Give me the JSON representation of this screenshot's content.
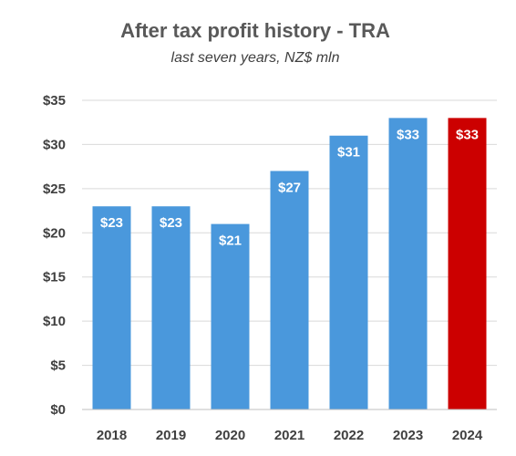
{
  "chart_data": {
    "type": "bar",
    "title": "After tax profit history - TRA",
    "subtitle": "last seven years, NZ$ mln",
    "xlabel": "",
    "ylabel": "",
    "categories": [
      "2018",
      "2019",
      "2020",
      "2021",
      "2022",
      "2023",
      "2024"
    ],
    "values": [
      23,
      23,
      21,
      27,
      31,
      33,
      33
    ],
    "data_labels": [
      "$23",
      "$23",
      "$21",
      "$27",
      "$31",
      "$33",
      "$33"
    ],
    "ylim": [
      0,
      35
    ],
    "yticks": [
      0,
      5,
      10,
      15,
      20,
      25,
      30,
      35
    ],
    "ytick_labels": [
      "$0",
      "$5",
      "$10",
      "$15",
      "$20",
      "$25",
      "$30",
      "$35"
    ],
    "grid": true,
    "legend": "none",
    "colors": {
      "bar": "#4a98dc",
      "highlight": "#cc0000",
      "highlight_index": 6
    }
  }
}
